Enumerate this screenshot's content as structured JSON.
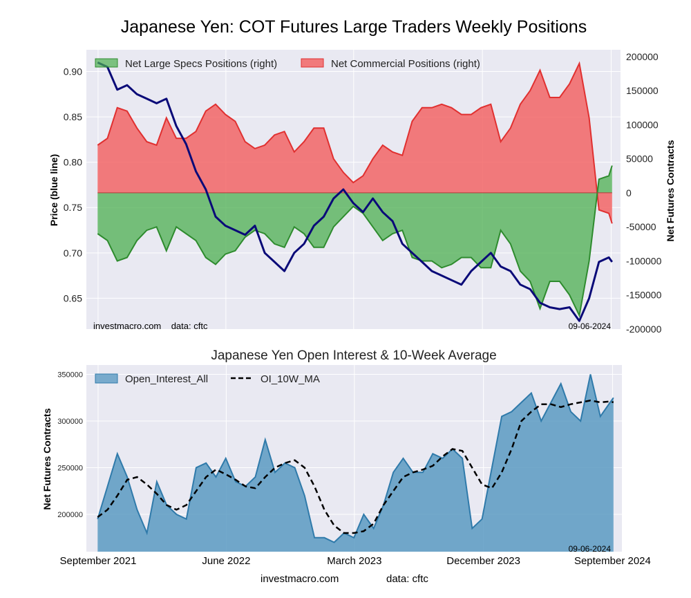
{
  "page": {
    "footer_site": "investmacro.com",
    "footer_data": "data: cftc"
  },
  "colors": {
    "panel_bg": "#e9e9f2",
    "grid": "#ffffff",
    "price_line": "#0a0a78",
    "specs_fill": "#4caf50",
    "specs_line": "#2e8b2e",
    "commercial_fill": "#f25c5c",
    "commercial_line": "#e03030",
    "oi_fill": "#5b9ac2",
    "oi_line": "#2f7aaa",
    "ma_line": "#000000"
  },
  "chart_data": [
    {
      "type": "line+area",
      "title": "Japanese Yen: COT Futures Large Traders Weekly Positions",
      "ylabel": "Price (blue line)",
      "ylabel_right": "Net Futures Contracts",
      "ylim": [
        0.616,
        0.924
      ],
      "ylim_right": [
        -200000,
        210000
      ],
      "yticks": [
        0.65,
        0.7,
        0.75,
        0.8,
        0.85,
        0.9
      ],
      "ytick_labels": [
        "0.65",
        "0.70",
        "0.75",
        "0.80",
        "0.85",
        "0.90"
      ],
      "yticks_right": [
        -200000,
        -150000,
        -100000,
        -50000,
        0,
        50000,
        100000,
        150000,
        200000
      ],
      "ytick_labels_right": [
        "-200000",
        "-150000",
        "-100000",
        "-50000",
        "0",
        "50000",
        "100000",
        "150000",
        "200000"
      ],
      "x_range": [
        "2021-08-07",
        "2024-09-21"
      ],
      "grid": true,
      "legend_position": "top",
      "annotations": {
        "left": "investmacro.com    data: cftc",
        "right": "09-06-2024"
      },
      "series": [
        {
          "name": "Net Large Specs Positions (right)",
          "kind": "area",
          "x": [
            "2021-08-31",
            "2021-09-21",
            "2021-10-12",
            "2021-11-02",
            "2021-11-23",
            "2021-12-14",
            "2022-01-04",
            "2022-01-25",
            "2022-02-15",
            "2022-03-08",
            "2022-03-29",
            "2022-04-19",
            "2022-05-10",
            "2022-05-31",
            "2022-06-21",
            "2022-07-12",
            "2022-08-02",
            "2022-08-23",
            "2022-09-13",
            "2022-10-04",
            "2022-10-25",
            "2022-11-15",
            "2022-12-06",
            "2022-12-27",
            "2023-01-17",
            "2023-02-07",
            "2023-02-28",
            "2023-03-21",
            "2023-04-11",
            "2023-05-02",
            "2023-05-23",
            "2023-06-13",
            "2023-07-04",
            "2023-07-25",
            "2023-08-15",
            "2023-09-05",
            "2023-09-26",
            "2023-10-17",
            "2023-11-07",
            "2023-11-28",
            "2023-12-19",
            "2024-01-09",
            "2024-01-30",
            "2024-02-20",
            "2024-03-12",
            "2024-04-02",
            "2024-04-23",
            "2024-05-14",
            "2024-06-04",
            "2024-06-25",
            "2024-07-16",
            "2024-08-06",
            "2024-08-27",
            "2024-09-03"
          ],
          "values": [
            -60000,
            -70000,
            -100000,
            -95000,
            -70000,
            -55000,
            -50000,
            -85000,
            -50000,
            -60000,
            -70000,
            -95000,
            -105000,
            -90000,
            -85000,
            -65000,
            -55000,
            -60000,
            -75000,
            -80000,
            -50000,
            -60000,
            -80000,
            -80000,
            -50000,
            -35000,
            -20000,
            -30000,
            -50000,
            -70000,
            -60000,
            -55000,
            -95000,
            -100000,
            -100000,
            -110000,
            -105000,
            -95000,
            -95000,
            -110000,
            -110000,
            -55000,
            -75000,
            -115000,
            -130000,
            -170000,
            -130000,
            -130000,
            -150000,
            -180000,
            -100000,
            20000,
            25000,
            40000
          ]
        },
        {
          "name": "Net Commercial Positions (right)",
          "kind": "area",
          "x": [
            "2021-08-31",
            "2021-09-21",
            "2021-10-12",
            "2021-11-02",
            "2021-11-23",
            "2021-12-14",
            "2022-01-04",
            "2022-01-25",
            "2022-02-15",
            "2022-03-08",
            "2022-03-29",
            "2022-04-19",
            "2022-05-10",
            "2022-05-31",
            "2022-06-21",
            "2022-07-12",
            "2022-08-02",
            "2022-08-23",
            "2022-09-13",
            "2022-10-04",
            "2022-10-25",
            "2022-11-15",
            "2022-12-06",
            "2022-12-27",
            "2023-01-17",
            "2023-02-07",
            "2023-02-28",
            "2023-03-21",
            "2023-04-11",
            "2023-05-02",
            "2023-05-23",
            "2023-06-13",
            "2023-07-04",
            "2023-07-25",
            "2023-08-15",
            "2023-09-05",
            "2023-09-26",
            "2023-10-17",
            "2023-11-07",
            "2023-11-28",
            "2023-12-19",
            "2024-01-09",
            "2024-01-30",
            "2024-02-20",
            "2024-03-12",
            "2024-04-02",
            "2024-04-23",
            "2024-05-14",
            "2024-06-04",
            "2024-06-25",
            "2024-07-16",
            "2024-08-06",
            "2024-08-27",
            "2024-09-03"
          ],
          "values": [
            70000,
            80000,
            125000,
            120000,
            95000,
            75000,
            70000,
            110000,
            80000,
            80000,
            90000,
            120000,
            130000,
            115000,
            105000,
            75000,
            65000,
            70000,
            85000,
            90000,
            60000,
            75000,
            95000,
            95000,
            50000,
            30000,
            15000,
            25000,
            50000,
            70000,
            60000,
            55000,
            105000,
            125000,
            125000,
            130000,
            125000,
            115000,
            115000,
            125000,
            130000,
            75000,
            95000,
            130000,
            150000,
            180000,
            140000,
            140000,
            160000,
            190000,
            110000,
            -25000,
            -30000,
            -45000
          ]
        },
        {
          "name": "Price",
          "kind": "line",
          "x": [
            "2021-08-31",
            "2021-09-21",
            "2021-10-12",
            "2021-11-02",
            "2021-11-23",
            "2021-12-14",
            "2022-01-04",
            "2022-01-25",
            "2022-02-15",
            "2022-03-08",
            "2022-03-29",
            "2022-04-19",
            "2022-05-10",
            "2022-05-31",
            "2022-06-21",
            "2022-07-12",
            "2022-08-02",
            "2022-08-23",
            "2022-09-13",
            "2022-10-04",
            "2022-10-25",
            "2022-11-15",
            "2022-12-06",
            "2022-12-27",
            "2023-01-17",
            "2023-02-07",
            "2023-02-28",
            "2023-03-21",
            "2023-04-11",
            "2023-05-02",
            "2023-05-23",
            "2023-06-13",
            "2023-07-04",
            "2023-07-25",
            "2023-08-15",
            "2023-09-05",
            "2023-09-26",
            "2023-10-17",
            "2023-11-07",
            "2023-11-28",
            "2023-12-19",
            "2024-01-09",
            "2024-01-30",
            "2024-02-20",
            "2024-03-12",
            "2024-04-02",
            "2024-04-23",
            "2024-05-14",
            "2024-06-04",
            "2024-06-25",
            "2024-07-16",
            "2024-08-06",
            "2024-08-27",
            "2024-09-03"
          ],
          "values": [
            0.91,
            0.905,
            0.88,
            0.885,
            0.875,
            0.87,
            0.865,
            0.87,
            0.84,
            0.82,
            0.79,
            0.77,
            0.74,
            0.73,
            0.725,
            0.72,
            0.73,
            0.7,
            0.69,
            0.68,
            0.7,
            0.71,
            0.73,
            0.74,
            0.76,
            0.77,
            0.755,
            0.745,
            0.76,
            0.745,
            0.735,
            0.71,
            0.7,
            0.69,
            0.68,
            0.675,
            0.67,
            0.665,
            0.68,
            0.69,
            0.7,
            0.685,
            0.68,
            0.665,
            0.66,
            0.645,
            0.64,
            0.638,
            0.64,
            0.625,
            0.65,
            0.69,
            0.695,
            0.69
          ]
        }
      ]
    },
    {
      "type": "area+line",
      "title": "Japanese Yen Open Interest & 10-Week Average",
      "ylabel": "Net Futures Contracts",
      "ylim": [
        160000,
        360000
      ],
      "yticks": [
        200000,
        250000,
        300000,
        350000
      ],
      "ytick_labels": [
        "200000",
        "250000",
        "300000",
        "350000"
      ],
      "x_range": [
        "2021-08-07",
        "2024-09-21"
      ],
      "xticks": [
        "2021-09-01",
        "2022-06-01",
        "2023-03-01",
        "2023-12-01",
        "2024-09-01"
      ],
      "xtick_labels": [
        "September 2021",
        "June 2022",
        "March 2023",
        "December 2023",
        "September 2024"
      ],
      "grid": true,
      "legend_position": "top-left",
      "annotations": {
        "right": "09-06-2024"
      },
      "series": [
        {
          "name": "Open_Interest_All",
          "kind": "area",
          "x": [
            "2021-08-31",
            "2021-09-21",
            "2021-10-12",
            "2021-11-02",
            "2021-11-23",
            "2021-12-14",
            "2022-01-04",
            "2022-01-25",
            "2022-02-15",
            "2022-03-08",
            "2022-03-29",
            "2022-04-19",
            "2022-05-10",
            "2022-05-31",
            "2022-06-21",
            "2022-07-12",
            "2022-08-02",
            "2022-08-23",
            "2022-09-13",
            "2022-10-04",
            "2022-10-25",
            "2022-11-15",
            "2022-12-06",
            "2022-12-27",
            "2023-01-17",
            "2023-02-07",
            "2023-02-28",
            "2023-03-21",
            "2023-04-11",
            "2023-05-02",
            "2023-05-23",
            "2023-06-13",
            "2023-07-04",
            "2023-07-25",
            "2023-08-15",
            "2023-09-05",
            "2023-09-26",
            "2023-10-17",
            "2023-11-07",
            "2023-11-28",
            "2023-12-19",
            "2024-01-09",
            "2024-01-30",
            "2024-02-20",
            "2024-03-12",
            "2024-04-02",
            "2024-04-23",
            "2024-05-14",
            "2024-06-04",
            "2024-06-25",
            "2024-07-16",
            "2024-08-06",
            "2024-08-27",
            "2024-09-03"
          ],
          "values": [
            195000,
            230000,
            265000,
            240000,
            205000,
            180000,
            235000,
            210000,
            200000,
            195000,
            250000,
            255000,
            240000,
            260000,
            235000,
            230000,
            240000,
            280000,
            245000,
            255000,
            250000,
            220000,
            175000,
            175000,
            170000,
            180000,
            175000,
            200000,
            185000,
            210000,
            245000,
            260000,
            245000,
            245000,
            265000,
            260000,
            270000,
            260000,
            185000,
            195000,
            250000,
            305000,
            310000,
            320000,
            330000,
            300000,
            320000,
            340000,
            310000,
            300000,
            350000,
            305000,
            320000,
            325000
          ]
        },
        {
          "name": "OI_10W_MA",
          "kind": "line",
          "x": [
            "2021-08-31",
            "2021-09-21",
            "2021-10-12",
            "2021-11-02",
            "2021-11-23",
            "2021-12-14",
            "2022-01-04",
            "2022-01-25",
            "2022-02-15",
            "2022-03-08",
            "2022-03-29",
            "2022-04-19",
            "2022-05-10",
            "2022-05-31",
            "2022-06-21",
            "2022-07-12",
            "2022-08-02",
            "2022-08-23",
            "2022-09-13",
            "2022-10-04",
            "2022-10-25",
            "2022-11-15",
            "2022-12-06",
            "2022-12-27",
            "2023-01-17",
            "2023-02-07",
            "2023-02-28",
            "2023-03-21",
            "2023-04-11",
            "2023-05-02",
            "2023-05-23",
            "2023-06-13",
            "2023-07-04",
            "2023-07-25",
            "2023-08-15",
            "2023-09-05",
            "2023-09-26",
            "2023-10-17",
            "2023-11-07",
            "2023-11-28",
            "2023-12-19",
            "2024-01-09",
            "2024-01-30",
            "2024-02-20",
            "2024-03-12",
            "2024-04-02",
            "2024-04-23",
            "2024-05-14",
            "2024-06-04",
            "2024-06-25",
            "2024-07-16",
            "2024-08-06",
            "2024-08-27",
            "2024-09-03"
          ],
          "values": [
            197000,
            205000,
            220000,
            237000,
            240000,
            232000,
            222000,
            210000,
            205000,
            210000,
            225000,
            240000,
            248000,
            243000,
            237000,
            230000,
            228000,
            240000,
            250000,
            255000,
            258000,
            250000,
            230000,
            205000,
            188000,
            180000,
            180000,
            182000,
            190000,
            210000,
            225000,
            240000,
            245000,
            248000,
            252000,
            262000,
            270000,
            268000,
            250000,
            232000,
            228000,
            245000,
            270000,
            300000,
            310000,
            318000,
            318000,
            315000,
            318000,
            320000,
            322000,
            320000,
            321000,
            320000
          ]
        }
      ]
    }
  ]
}
